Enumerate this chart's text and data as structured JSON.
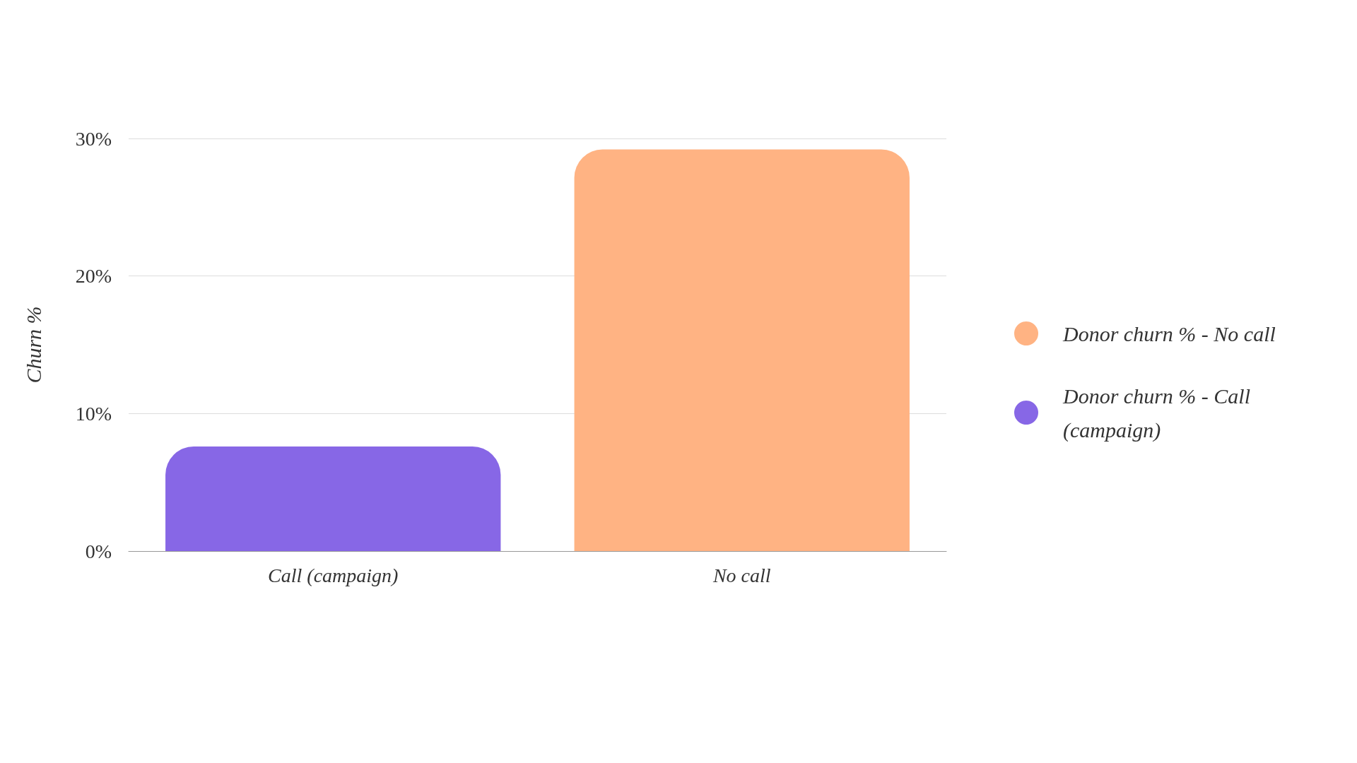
{
  "chart_data": {
    "type": "bar",
    "ylabel": "Churn %",
    "categories": [
      "Call (campaign)",
      "No call"
    ],
    "series": [
      {
        "name": "Donor churn % - No call",
        "color": "#ffb383",
        "values": [
          null,
          29.2
        ]
      },
      {
        "name": "Donor churn % - Call (campaign)",
        "color": "#8767e6",
        "values": [
          7.6,
          null
        ]
      }
    ],
    "ylim": [
      0,
      30
    ],
    "yticks": [
      {
        "value": 0,
        "label": "0%"
      },
      {
        "value": 10,
        "label": "10%"
      },
      {
        "value": 20,
        "label": "20%"
      },
      {
        "value": 30,
        "label": "30%"
      }
    ],
    "grid": "y",
    "legend": "right"
  }
}
